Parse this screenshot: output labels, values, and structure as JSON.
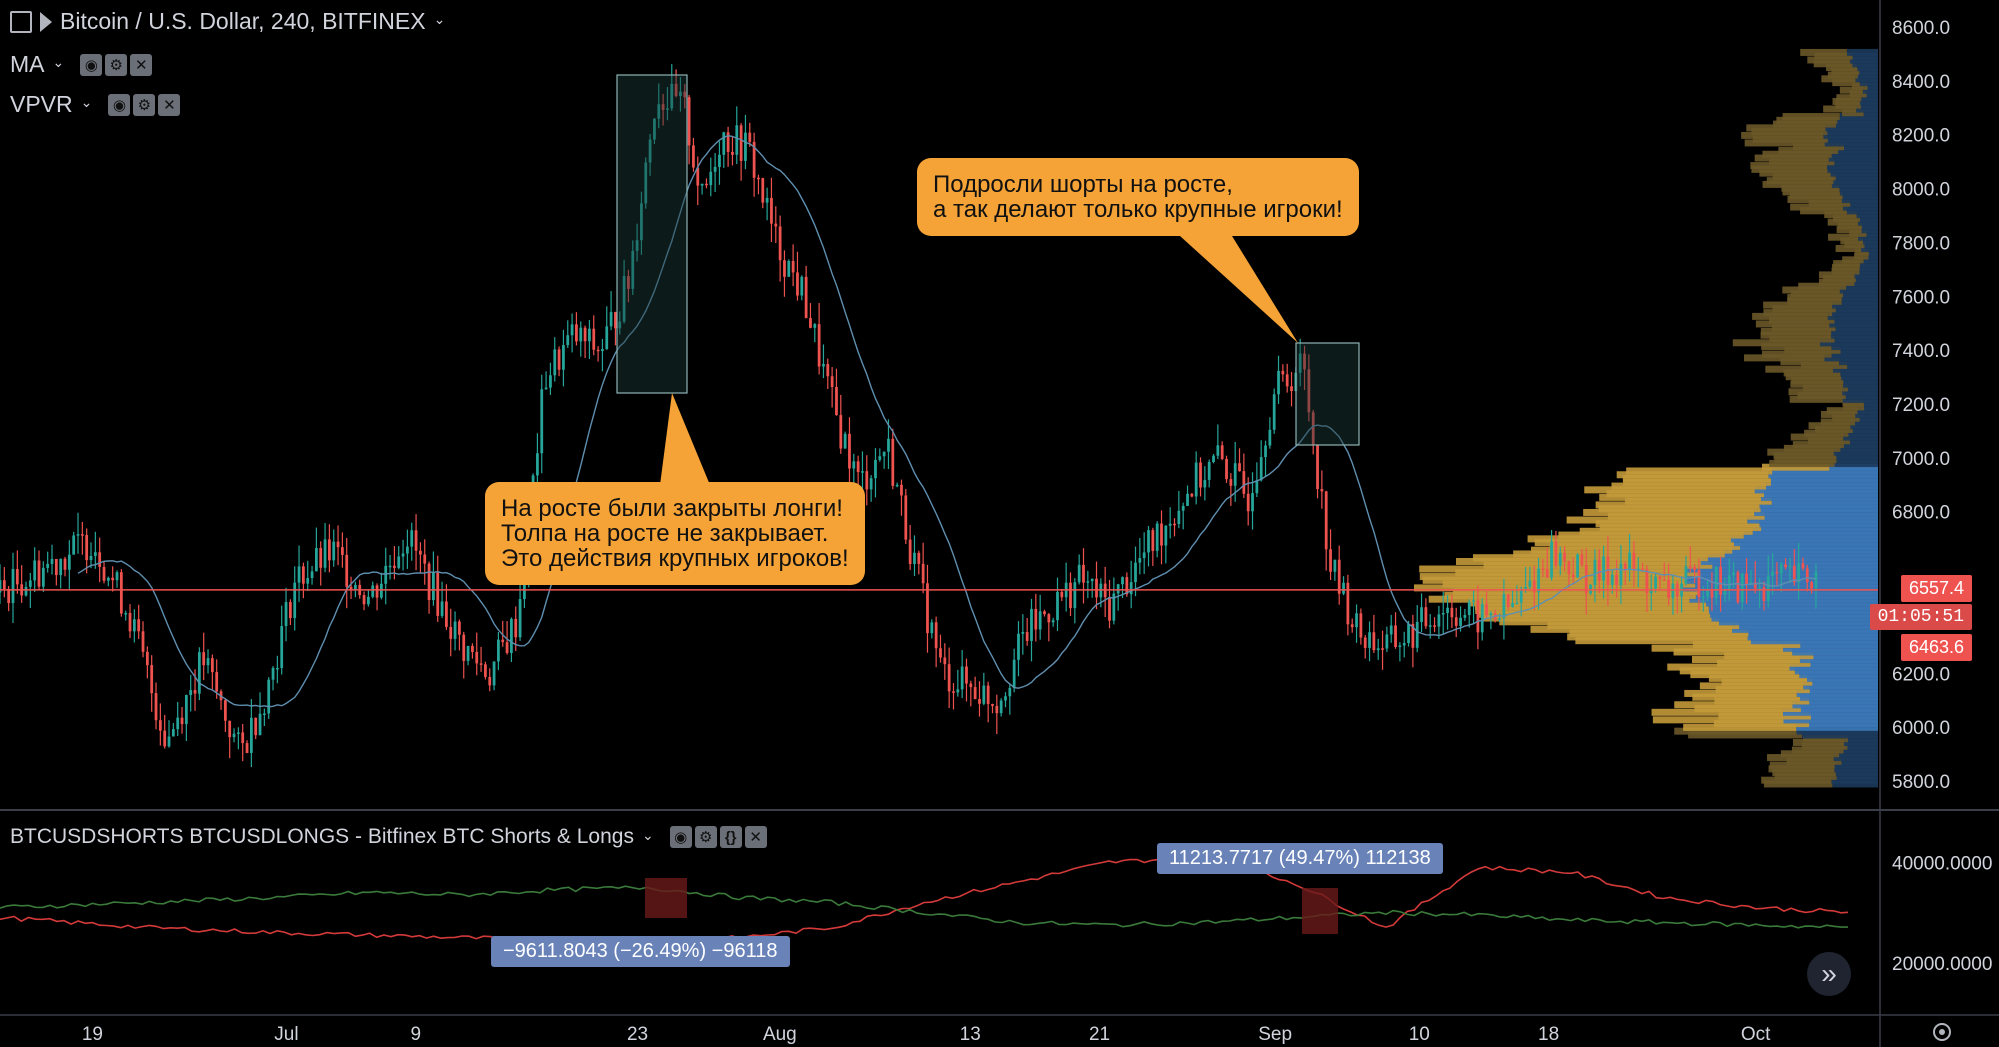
{
  "header": {
    "symbol_title": "Bitcoin / U.S. Dollar, 240, BITFINEX",
    "indicators": [
      "MA",
      "VPVR"
    ]
  },
  "lower_pane": {
    "title": "BTCUSDSHORTS BTCUSDLONGS - Bitfinex BTC Shorts & Longs",
    "tag_positive": "11213.7717 (49.47%) 112138",
    "tag_negative": "−9611.8043 (−26.49%) −96118",
    "y_ticks": [
      "40000.0000",
      "20000.0000"
    ]
  },
  "callouts": {
    "left": "На росте были закрыты лонги!\nТолпа на росте не закрывает.\nЭто действия крупных игроков!",
    "right": "Подросли шорты на росте,\nа так делают только крупные игроки!"
  },
  "price_tags": {
    "last": "6557.4",
    "countdown": "01:05:51",
    "bid": "6463.6"
  },
  "colors": {
    "up": "#26a69a",
    "down": "#ef5350",
    "ma": "#5f8fb0",
    "vp_gold": "#c49a3a",
    "vp_blue": "#3b78b8",
    "callout": "#f5a336",
    "tag": "#6983b8",
    "shorts_line": "#d43a3a",
    "longs_line": "#3a7a3a"
  },
  "chart_data": [
    {
      "type": "candlestick",
      "title": "Bitcoin / U.S. Dollar, 240, BITFINEX",
      "x_ticks": [
        "19",
        "Jul",
        "9",
        "23",
        "Aug",
        "13",
        "21",
        "Sep",
        "10",
        "18",
        "Oct"
      ],
      "y_ticks": [
        "8600.0",
        "8400.0",
        "8200.0",
        "8000.0",
        "7800.0",
        "7600.0",
        "7400.0",
        "7200.0",
        "7000.0",
        "6800.0",
        "6200.0",
        "6000.0",
        "5800.0"
      ],
      "ylim": [
        5700,
        8700
      ],
      "horizontal_line": 6510,
      "close_path": [
        [
          0.0,
          6500
        ],
        [
          0.03,
          6620
        ],
        [
          0.05,
          6700
        ],
        [
          0.07,
          6420
        ],
        [
          0.09,
          5950
        ],
        [
          0.11,
          6250
        ],
        [
          0.13,
          5900
        ],
        [
          0.145,
          6150
        ],
        [
          0.16,
          6550
        ],
        [
          0.18,
          6650
        ],
        [
          0.2,
          6480
        ],
        [
          0.22,
          6720
        ],
        [
          0.235,
          6500
        ],
        [
          0.25,
          6300
        ],
        [
          0.265,
          6200
        ],
        [
          0.28,
          6400
        ],
        [
          0.295,
          7300
        ],
        [
          0.31,
          7450
        ],
        [
          0.325,
          7400
        ],
        [
          0.34,
          7650
        ],
        [
          0.355,
          8350
        ],
        [
          0.37,
          8300
        ],
        [
          0.38,
          7950
        ],
        [
          0.39,
          8200
        ],
        [
          0.405,
          8150
        ],
        [
          0.42,
          7800
        ],
        [
          0.435,
          7600
        ],
        [
          0.45,
          7200
        ],
        [
          0.465,
          6900
        ],
        [
          0.48,
          7050
        ],
        [
          0.495,
          6600
        ],
        [
          0.51,
          6200
        ],
        [
          0.525,
          6150
        ],
        [
          0.54,
          6100
        ],
        [
          0.555,
          6350
        ],
        [
          0.57,
          6450
        ],
        [
          0.585,
          6550
        ],
        [
          0.6,
          6450
        ],
        [
          0.615,
          6600
        ],
        [
          0.63,
          6750
        ],
        [
          0.645,
          6900
        ],
        [
          0.66,
          7000
        ],
        [
          0.675,
          6850
        ],
        [
          0.69,
          7250
        ],
        [
          0.705,
          7350
        ],
        [
          0.72,
          6600
        ],
        [
          0.735,
          6350
        ],
        [
          0.75,
          6300
        ],
        [
          0.765,
          6350
        ],
        [
          0.78,
          6450
        ],
        [
          0.8,
          6400
        ],
        [
          0.82,
          6450
        ],
        [
          0.84,
          6650
        ],
        [
          0.86,
          6550
        ],
        [
          0.88,
          6600
        ],
        [
          0.9,
          6500
        ],
        [
          0.92,
          6550
        ],
        [
          0.94,
          6520
        ],
        [
          0.96,
          6540
        ],
        [
          0.985,
          6557
        ]
      ]
    },
    {
      "type": "line",
      "title": "BTCUSDSHORTS BTCUSDLONGS - Bitfinex BTC Shorts & Longs",
      "ylim": [
        10000,
        50000
      ],
      "series": [
        {
          "name": "BTCUSDSHORTS",
          "x": [
            0.0,
            0.08,
            0.15,
            0.2,
            0.25,
            0.3,
            0.35,
            0.4,
            0.45,
            0.5,
            0.55,
            0.6,
            0.65,
            0.7,
            0.75,
            0.8,
            0.85,
            0.9,
            0.95,
            1.0
          ],
          "values": [
            29000,
            27000,
            26000,
            25500,
            25000,
            24500,
            24000,
            25000,
            27000,
            32000,
            36000,
            40000,
            41000,
            36000,
            27000,
            39000,
            38000,
            33000,
            31000,
            30000
          ]
        },
        {
          "name": "BTCUSDLONGS",
          "x": [
            0.0,
            0.08,
            0.15,
            0.2,
            0.25,
            0.3,
            0.35,
            0.4,
            0.45,
            0.5,
            0.55,
            0.6,
            0.65,
            0.7,
            0.75,
            0.8,
            0.85,
            0.9,
            0.95,
            1.0
          ],
          "values": [
            31000,
            32000,
            33000,
            34000,
            33500,
            34500,
            35000,
            33000,
            32000,
            30000,
            28000,
            27500,
            28000,
            29000,
            30000,
            29500,
            28500,
            28000,
            27500,
            27000
          ]
        }
      ]
    }
  ]
}
